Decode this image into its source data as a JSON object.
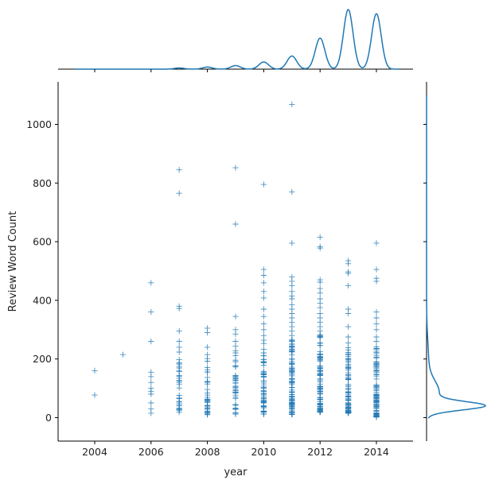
{
  "chart_data": {
    "type": "scatter",
    "marker": "+",
    "color": "#1f77b4",
    "xlabel": "year",
    "ylabel": "Review Word Count",
    "xlim": [
      2002.7,
      2015.3
    ],
    "ylim": [
      -80,
      1145
    ],
    "xticks": [
      "2004",
      "2006",
      "2008",
      "2010",
      "2012",
      "2014"
    ],
    "yticks": [
      "0",
      "200",
      "400",
      "600",
      "800",
      "1000"
    ],
    "marginals": {
      "x": "kde",
      "y": "kde"
    },
    "grid": false,
    "points": [
      {
        "year": 2004,
        "words": 160
      },
      {
        "year": 2004,
        "words": 77
      },
      {
        "year": 2005,
        "words": 215
      },
      {
        "year": 2006,
        "words": 460
      },
      {
        "year": 2006,
        "words": 360
      },
      {
        "year": 2006,
        "words": 260
      },
      {
        "year": 2006,
        "words": 155
      },
      {
        "year": 2006,
        "words": 140
      },
      {
        "year": 2006,
        "words": 120
      },
      {
        "year": 2006,
        "words": 100
      },
      {
        "year": 2006,
        "words": 90
      },
      {
        "year": 2006,
        "words": 80
      },
      {
        "year": 2006,
        "words": 50
      },
      {
        "year": 2006,
        "words": 30
      },
      {
        "year": 2006,
        "words": 15
      },
      {
        "year": 2007,
        "words": 845
      },
      {
        "year": 2007,
        "words": 765
      },
      {
        "year": 2007,
        "words": 380
      },
      {
        "year": 2007,
        "words": 372
      },
      {
        "year": 2007,
        "words": 295
      },
      {
        "year": 2007,
        "words": 260
      },
      {
        "year": 2007,
        "words": 240
      },
      {
        "year": 2008,
        "words": 305
      },
      {
        "year": 2008,
        "words": 290
      },
      {
        "year": 2008,
        "words": 240
      },
      {
        "year": 2008,
        "words": 215
      },
      {
        "year": 2009,
        "words": 852
      },
      {
        "year": 2009,
        "words": 660
      },
      {
        "year": 2009,
        "words": 345
      },
      {
        "year": 2009,
        "words": 300
      },
      {
        "year": 2009,
        "words": 285
      },
      {
        "year": 2009,
        "words": 260
      },
      {
        "year": 2010,
        "words": 795
      },
      {
        "year": 2010,
        "words": 505
      },
      {
        "year": 2010,
        "words": 485
      },
      {
        "year": 2010,
        "words": 460
      },
      {
        "year": 2010,
        "words": 430
      },
      {
        "year": 2010,
        "words": 408
      },
      {
        "year": 2010,
        "words": 370
      },
      {
        "year": 2010,
        "words": 345
      },
      {
        "year": 2010,
        "words": 320
      },
      {
        "year": 2010,
        "words": 300
      },
      {
        "year": 2010,
        "words": 280
      },
      {
        "year": 2011,
        "words": 1068
      },
      {
        "year": 2011,
        "words": 770
      },
      {
        "year": 2011,
        "words": 595
      },
      {
        "year": 2011,
        "words": 480
      },
      {
        "year": 2011,
        "words": 465
      },
      {
        "year": 2011,
        "words": 450
      },
      {
        "year": 2011,
        "words": 430
      },
      {
        "year": 2011,
        "words": 415
      },
      {
        "year": 2011,
        "words": 405
      },
      {
        "year": 2011,
        "words": 385
      },
      {
        "year": 2011,
        "words": 370
      },
      {
        "year": 2011,
        "words": 355
      },
      {
        "year": 2011,
        "words": 340
      },
      {
        "year": 2011,
        "words": 325
      },
      {
        "year": 2011,
        "words": 310
      },
      {
        "year": 2011,
        "words": 295
      },
      {
        "year": 2011,
        "words": 280
      },
      {
        "year": 2012,
        "words": 615
      },
      {
        "year": 2012,
        "words": 583
      },
      {
        "year": 2012,
        "words": 578
      },
      {
        "year": 2012,
        "words": 470
      },
      {
        "year": 2012,
        "words": 462
      },
      {
        "year": 2012,
        "words": 440
      },
      {
        "year": 2012,
        "words": 425
      },
      {
        "year": 2012,
        "words": 405
      },
      {
        "year": 2012,
        "words": 390
      },
      {
        "year": 2012,
        "words": 375
      },
      {
        "year": 2012,
        "words": 355
      },
      {
        "year": 2012,
        "words": 340
      },
      {
        "year": 2012,
        "words": 325
      },
      {
        "year": 2012,
        "words": 310
      },
      {
        "year": 2012,
        "words": 295
      },
      {
        "year": 2013,
        "words": 535
      },
      {
        "year": 2013,
        "words": 525
      },
      {
        "year": 2013,
        "words": 497
      },
      {
        "year": 2013,
        "words": 492
      },
      {
        "year": 2013,
        "words": 450
      },
      {
        "year": 2013,
        "words": 370
      },
      {
        "year": 2013,
        "words": 355
      },
      {
        "year": 2013,
        "words": 310
      },
      {
        "year": 2013,
        "words": 275
      },
      {
        "year": 2013,
        "words": 255
      },
      {
        "year": 2014,
        "words": 595
      },
      {
        "year": 2014,
        "words": 505
      },
      {
        "year": 2014,
        "words": 475
      },
      {
        "year": 2014,
        "words": 465
      },
      {
        "year": 2014,
        "words": 360
      },
      {
        "year": 2014,
        "words": 340
      },
      {
        "year": 2014,
        "words": 320
      },
      {
        "year": 2014,
        "words": 300
      },
      {
        "year": 2014,
        "words": 275
      },
      {
        "year": 2014,
        "words": 260
      }
    ],
    "dense_columns": [
      {
        "year": 2007,
        "min": 12,
        "max": 225,
        "count": 30
      },
      {
        "year": 2008,
        "min": 10,
        "max": 210,
        "count": 35
      },
      {
        "year": 2009,
        "min": 12,
        "max": 245,
        "count": 40
      },
      {
        "year": 2010,
        "min": 12,
        "max": 265,
        "count": 60
      },
      {
        "year": 2011,
        "min": 10,
        "max": 270,
        "count": 90
      },
      {
        "year": 2012,
        "min": 18,
        "max": 285,
        "count": 90
      },
      {
        "year": 2013,
        "min": 15,
        "max": 245,
        "count": 80
      },
      {
        "year": 2014,
        "min": 2,
        "max": 250,
        "count": 90
      }
    ],
    "x_marginal_peaks": [
      {
        "year": 2007,
        "density": 0.02
      },
      {
        "year": 2008,
        "density": 0.035
      },
      {
        "year": 2009,
        "density": 0.06
      },
      {
        "year": 2010,
        "density": 0.12
      },
      {
        "year": 2011,
        "density": 0.22
      },
      {
        "year": 2012,
        "density": 0.52
      },
      {
        "year": 2013,
        "density": 1.0
      },
      {
        "year": 2014,
        "density": 0.93
      }
    ],
    "y_marginal_components": [
      {
        "center": 40,
        "width": 14,
        "weight": 1.0
      },
      {
        "center": 85,
        "width": 40,
        "weight": 0.22
      },
      {
        "center": 180,
        "width": 80,
        "weight": 0.04
      }
    ]
  }
}
